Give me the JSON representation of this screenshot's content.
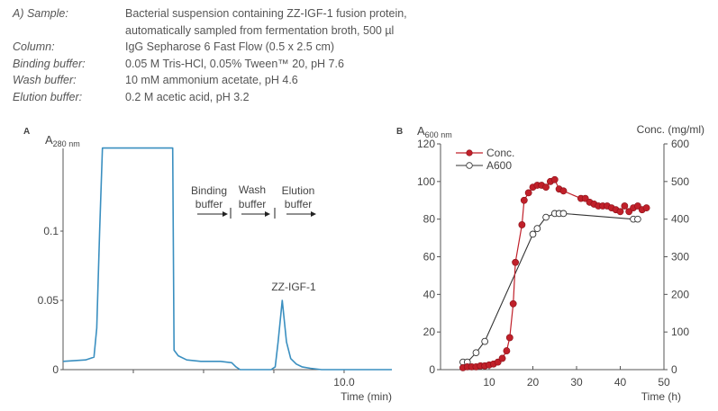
{
  "spec": {
    "rows": [
      {
        "label": "A) Sample:",
        "value": "Bacterial suspension containing ZZ-IGF-1 fusion protein,"
      },
      {
        "label": "",
        "value": "automatically sampled from fermentation broth, 500 µl"
      },
      {
        "label": "Column:",
        "value": "IgG Sepharose 6 Fast Flow (0.5 x 2.5 cm)"
      },
      {
        "label": "Binding buffer:",
        "value": "0.05 M Tris-HCl, 0.05% Tween™ 20, pH 7.6"
      },
      {
        "label": "Wash buffer:",
        "value": "10 mM ammonium acetate, pH 4.6"
      },
      {
        "label": "Elution buffer:",
        "value": "0.2 M acetic acid, pH 3.2"
      }
    ]
  },
  "colors": {
    "chromatogram": "#3a8fc0",
    "conc": "#c0202a",
    "a600": "#333333",
    "axis": "#555555"
  },
  "chart_data": [
    {
      "type": "line",
      "panel_label": "A",
      "title": "",
      "ylabel_main": "A",
      "ylabel_sub": "280 nm",
      "xlabel": "Time (min)",
      "ylim": [
        0,
        0.17
      ],
      "xlim": [
        0,
        11.7
      ],
      "y_ticks": [
        {
          "value": 0,
          "label": "0"
        },
        {
          "value": 0.05,
          "label": "0.05"
        },
        {
          "value": 0.1,
          "label": "0.1"
        }
      ],
      "x_ticks": [
        {
          "value": 2.5,
          "label": ""
        },
        {
          "value": 5.0,
          "label": ""
        },
        {
          "value": 7.5,
          "label": ""
        },
        {
          "value": 10.0,
          "label": "10.0"
        }
      ],
      "series": [
        {
          "name": "A280",
          "x": [
            0,
            0.8,
            1.1,
            1.2,
            1.3,
            1.4,
            1.5,
            3.9,
            3.95,
            4.1,
            4.4,
            4.9,
            5.6,
            6.0,
            6.15,
            6.3,
            6.6,
            7.0,
            7.4,
            7.55,
            7.65,
            7.8,
            7.95,
            8.1,
            8.3,
            8.5,
            8.8,
            9.2,
            10.5,
            11.7
          ],
          "values": [
            0.006,
            0.007,
            0.009,
            0.03,
            0.1,
            0.16,
            0.16,
            0.16,
            0.014,
            0.01,
            0.007,
            0.006,
            0.006,
            0.005,
            0.002,
            0.0,
            0.0,
            0.0,
            0.0,
            0.002,
            0.02,
            0.05,
            0.02,
            0.008,
            0.004,
            0.002,
            0.001,
            0.0,
            0.0,
            0.0
          ]
        }
      ],
      "annotations": [
        {
          "text": "ZZ-IGF-1",
          "x": 7.8,
          "y": 0.059
        },
        {
          "text_lines": [
            "Binding",
            "buffer"
          ],
          "arrow": "right"
        },
        {
          "text_lines": [
            "Wash",
            "buffer"
          ],
          "arrow": "right"
        },
        {
          "text_lines": [
            "Elution",
            "buffer"
          ],
          "arrow": "right"
        }
      ]
    },
    {
      "type": "line",
      "panel_label": "B",
      "ylabel_main": "A",
      "ylabel_sub": "600 nm",
      "y2label": "Conc. (mg/ml)",
      "xlabel": "Time (h)",
      "xlim": [
        0,
        50
      ],
      "ylim": [
        0,
        120
      ],
      "y2lim": [
        0,
        600
      ],
      "x_ticks": [
        0,
        10,
        20,
        30,
        40,
        50
      ],
      "y_ticks": [
        0,
        20,
        40,
        60,
        80,
        100,
        120
      ],
      "y2_ticks": [
        0,
        100,
        200,
        300,
        400,
        500,
        600
      ],
      "legend": {
        "placement": "top-left",
        "entries": [
          {
            "label": "Conc.",
            "marker": "filled-circle"
          },
          {
            "label": "A600",
            "marker": "open-circle"
          }
        ]
      },
      "series": [
        {
          "name": "Conc.",
          "axis": "right",
          "marker": "filled-circle",
          "x": [
            4,
            5,
            6,
            7,
            8,
            9,
            10,
            11,
            12,
            13,
            14,
            14.7,
            15.5,
            16,
            17.5,
            18,
            19,
            20,
            21,
            22,
            23,
            24,
            25,
            26,
            27,
            31,
            32,
            33,
            34,
            35,
            36,
            37,
            38,
            39,
            40,
            41,
            42,
            43,
            44,
            45,
            46
          ],
          "values": [
            5,
            7.5,
            7.5,
            7.5,
            10,
            10,
            12.5,
            15,
            20,
            30,
            50,
            85,
            175,
            285,
            385,
            450,
            470,
            485,
            490,
            490,
            485,
            500,
            505,
            480,
            475,
            455,
            455,
            445,
            440,
            435,
            435,
            435,
            430,
            425,
            420,
            435,
            420,
            430,
            435,
            425,
            430
          ]
        },
        {
          "name": "A600",
          "axis": "left",
          "marker": "open-circle",
          "x": [
            4,
            5,
            7,
            9,
            20,
            21,
            23,
            25,
            26,
            27,
            43,
            44
          ],
          "values": [
            4,
            4,
            9,
            15,
            72,
            75,
            81,
            83,
            83,
            83,
            80,
            80
          ]
        }
      ]
    }
  ]
}
